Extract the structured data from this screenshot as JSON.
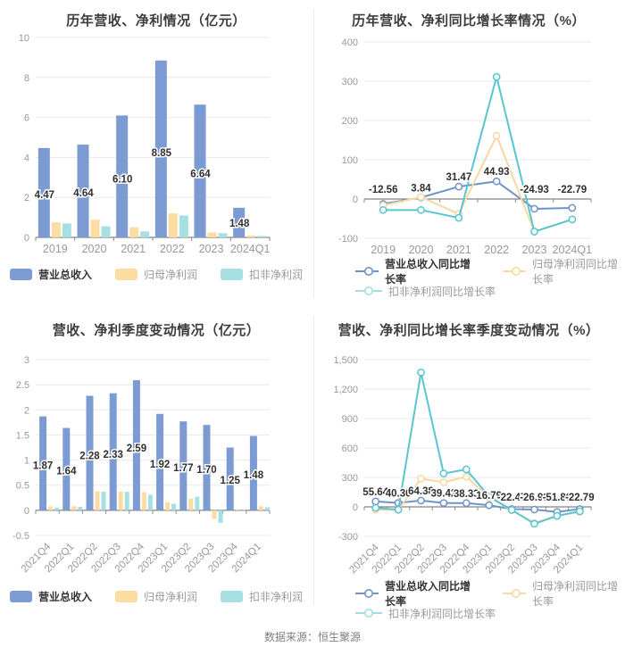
{
  "page": {
    "background": "#ffffff",
    "footer": {
      "label": "数据来源：恒生聚源"
    }
  },
  "colors": {
    "revenue_bar": "#7b9bd2",
    "net_profit_bar": "#fcdca0",
    "non_gaap_bar": "#a7e0e2",
    "revenue_line": "#6d94c9",
    "net_profit_line": "#f8d8a2",
    "non_gaap_line": "#58c5d1",
    "grid_line": "#e8e8e8",
    "zero_axis": "#666666",
    "axis_text": "#999999",
    "data_label": "#2f2f2f",
    "title_text": "#3d3d3d"
  },
  "chart_data": [
    {
      "id": "annual-revenue-profit",
      "type": "bar",
      "title": "历年营收、净利情况（亿元）",
      "categories": [
        "2019",
        "2020",
        "2021",
        "2022",
        "2023",
        "2024Q1"
      ],
      "ylim": [
        0,
        10
      ],
      "grid": true,
      "legend_position": "bottom-center",
      "yticks": [
        {
          "v": 0,
          "label": "0"
        },
        {
          "v": 2,
          "label": "2"
        },
        {
          "v": 4,
          "label": "4"
        },
        {
          "v": 6,
          "label": "6"
        },
        {
          "v": 8,
          "label": "8"
        },
        {
          "v": 10,
          "label": "10"
        }
      ],
      "series": [
        {
          "name": "营业总收入",
          "color": "#7b9bd2",
          "values": [
            4.47,
            4.64,
            6.1,
            8.85,
            6.64,
            1.48
          ],
          "labels": [
            "4.47",
            "4.64",
            "6.10",
            "8.85",
            "6.64",
            "1.48"
          ]
        },
        {
          "name": "归母净利润",
          "color": "#fcdca0",
          "values": [
            0.75,
            0.88,
            0.5,
            1.2,
            0.25,
            0.1
          ]
        },
        {
          "name": "扣非净利润",
          "color": "#a7e0e2",
          "values": [
            0.7,
            0.55,
            0.3,
            1.1,
            0.21,
            0.07
          ]
        }
      ]
    },
    {
      "id": "annual-growth-rate",
      "type": "line",
      "title": "历年营收、净利同比增长率情况（%）",
      "categories": [
        "2019",
        "2020",
        "2021",
        "2022",
        "2023",
        "2024Q1"
      ],
      "ylim": [
        -100,
        400
      ],
      "grid": true,
      "legend_position": "bottom-left-two-rows",
      "yticks": [
        {
          "v": -100,
          "label": "-100"
        },
        {
          "v": 0,
          "label": "0"
        },
        {
          "v": 100,
          "label": "100"
        },
        {
          "v": 200,
          "label": "200"
        },
        {
          "v": 300,
          "label": "300"
        },
        {
          "v": 400,
          "label": "400"
        }
      ],
      "series": [
        {
          "name": "营业总收入同比增长率",
          "color": "#6d94c9",
          "values": [
            -12.56,
            3.84,
            31.47,
            44.93,
            -24.93,
            -22.79
          ],
          "labels": [
            "-12.56",
            "3.84",
            "31.47",
            "44.93",
            "-24.93",
            "-22.79"
          ]
        },
        {
          "name": "归母净利润同比增长率",
          "color": "#f8d8a2",
          "values": [
            -16,
            5,
            -38,
            161,
            -83,
            -52
          ]
        },
        {
          "name": "扣非净利润同比增长率",
          "color": "#58c5d1",
          "legend_color": "#9fdfe4",
          "values": [
            -28,
            -28,
            -48,
            311,
            -83,
            -52
          ]
        }
      ]
    },
    {
      "id": "quarterly-revenue-profit",
      "type": "bar",
      "title": "营收、净利季度变动情况（亿元）",
      "categories": [
        "2021Q4",
        "2022Q1",
        "2022Q2",
        "2022Q3",
        "2022Q4",
        "2023Q1",
        "2023Q2",
        "2023Q3",
        "2023Q4",
        "2024Q1"
      ],
      "ylim": [
        -0.5,
        3
      ],
      "grid": true,
      "legend_position": "bottom-center",
      "yticks": [
        {
          "v": -0.5,
          "label": "-0.5"
        },
        {
          "v": 0,
          "label": "0"
        },
        {
          "v": 0.5,
          "label": "0.5"
        },
        {
          "v": 1,
          "label": "1"
        },
        {
          "v": 1.5,
          "label": "1.5"
        },
        {
          "v": 2,
          "label": "2"
        },
        {
          "v": 2.5,
          "label": "2.5"
        },
        {
          "v": 3,
          "label": "3"
        }
      ],
      "series": [
        {
          "name": "营业总收入",
          "color": "#7b9bd2",
          "values": [
            1.87,
            1.64,
            2.28,
            2.33,
            2.59,
            1.92,
            1.77,
            1.7,
            1.25,
            1.48
          ],
          "labels": [
            "1.87",
            "1.64",
            "2.28",
            "2.33",
            "2.59",
            "1.92",
            "1.77",
            "1.70",
            "1.25",
            "1.48"
          ]
        },
        {
          "name": "归母净利润",
          "color": "#fcdca0",
          "values": [
            0.08,
            0.08,
            0.38,
            0.37,
            0.36,
            0.16,
            0.23,
            -0.17,
            0.02,
            0.08
          ]
        },
        {
          "name": "扣非净利润",
          "color": "#a7e0e2",
          "values": [
            0.05,
            0.07,
            0.37,
            0.37,
            0.31,
            0.13,
            0.27,
            -0.25,
            0.01,
            0.06
          ]
        }
      ]
    },
    {
      "id": "quarterly-growth-rate",
      "type": "line",
      "title": "营收、净利同比增长率季度变动情况（%）",
      "categories": [
        "2021Q4",
        "2022Q1",
        "2022Q2",
        "2022Q3",
        "2022Q4",
        "2023Q1",
        "2023Q2",
        "2023Q3",
        "2023Q4",
        "2024Q1"
      ],
      "ylim": [
        -300,
        1500
      ],
      "grid": true,
      "legend_position": "bottom-left-two-rows",
      "yticks": [
        {
          "v": -300,
          "label": "-300"
        },
        {
          "v": 0,
          "label": "0"
        },
        {
          "v": 300,
          "label": "300"
        },
        {
          "v": 600,
          "label": "600"
        },
        {
          "v": 900,
          "label": "900"
        },
        {
          "v": 1200,
          "label": "1,200"
        },
        {
          "v": 1500,
          "label": "1,500"
        }
      ],
      "series": [
        {
          "name": "营业总收入同比增长率",
          "color": "#6d94c9",
          "values": [
            55.64,
            40.3,
            64.38,
            39.42,
            38.33,
            16.79,
            -22.47,
            -26.93,
            -51.8,
            -22.79
          ],
          "labels": [
            "55.64",
            "40.30",
            "64.38",
            "39.42",
            "38.33",
            "16.79",
            "-22.47",
            "-26.93",
            "-51.80",
            "-22.79"
          ]
        },
        {
          "name": "归母净利润同比增长率",
          "color": "#f8d8a2",
          "values": [
            -28,
            -32,
            288,
            250,
            308,
            95,
            -35,
            -165,
            -90,
            -52
          ]
        },
        {
          "name": "扣非净利润同比增长率",
          "color": "#58c5d1",
          "legend_color": "#9fdfe4",
          "values": [
            -10,
            -28,
            1370,
            340,
            382,
            105,
            -30,
            -172,
            -92,
            -45
          ]
        }
      ]
    }
  ]
}
